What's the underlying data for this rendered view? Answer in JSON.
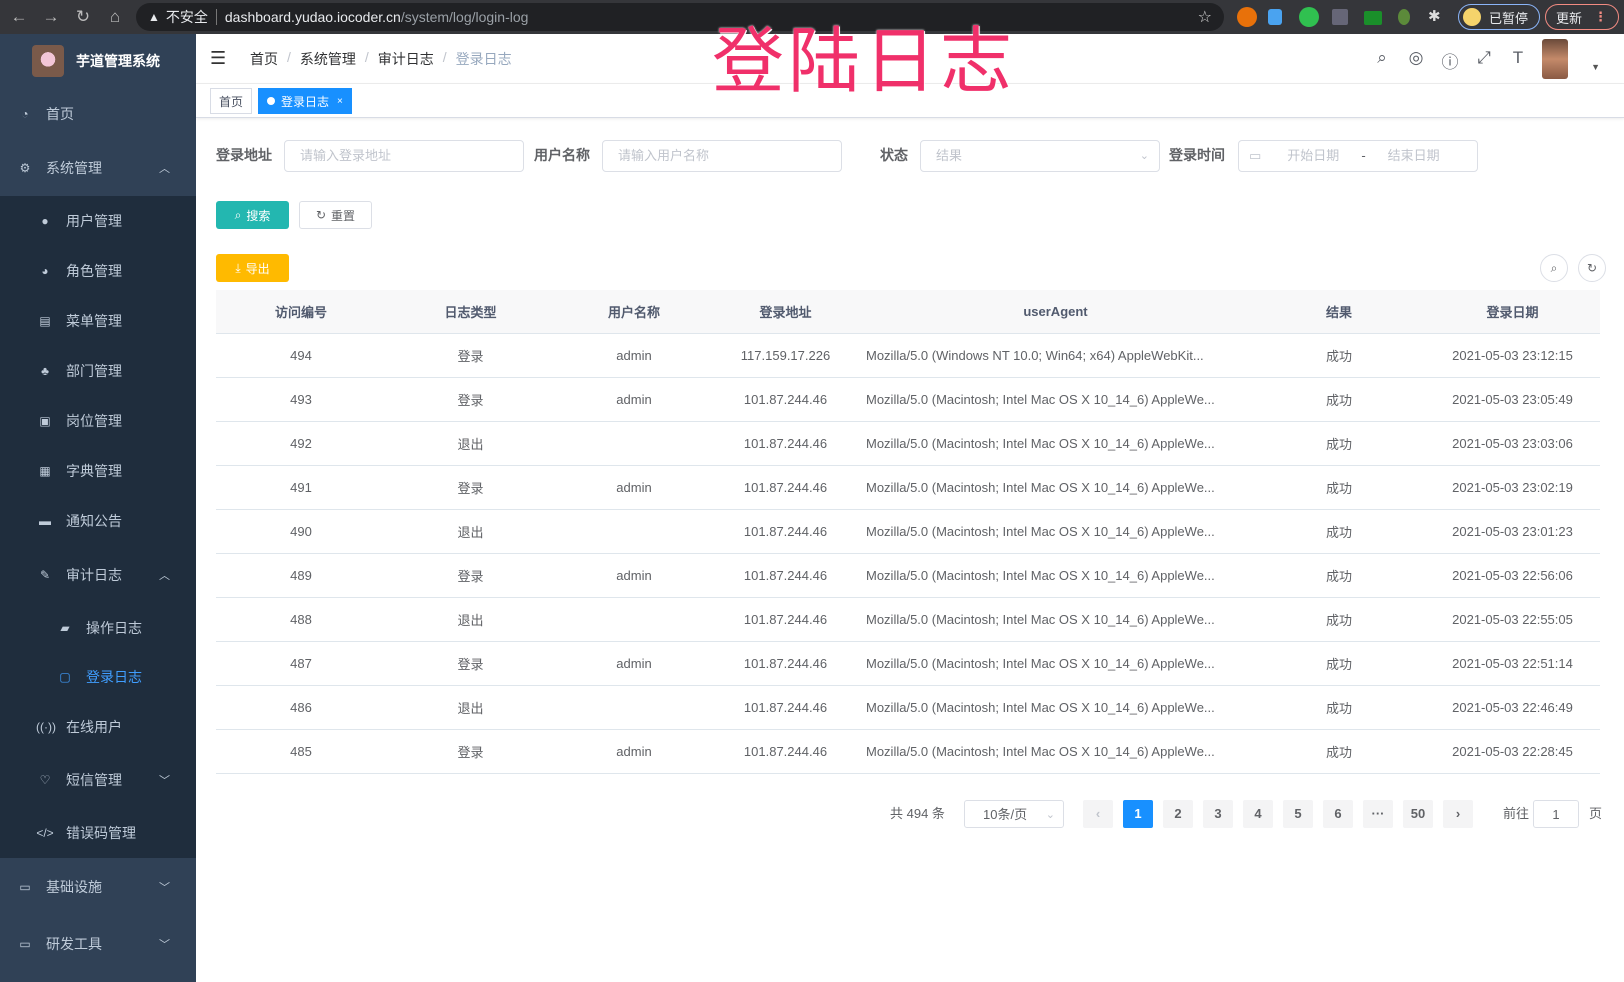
{
  "browser": {
    "security": "不安全",
    "host": "dashboard.yudao.iocoder.cn",
    "path": "/system/log/login-log",
    "profile": "已暂停",
    "update": "更新"
  },
  "overlay_title": "登陆日志",
  "sidebar": {
    "title": "芋道管理系统",
    "items": [
      {
        "label": "首页",
        "icon": "dashboard-icon"
      },
      {
        "label": "系统管理",
        "icon": "gear-icon",
        "expanded": true
      },
      {
        "label": "用户管理",
        "icon": "user-icon"
      },
      {
        "label": "角色管理",
        "icon": "peoples-icon"
      },
      {
        "label": "菜单管理",
        "icon": "tree-table-icon"
      },
      {
        "label": "部门管理",
        "icon": "tree-icon"
      },
      {
        "label": "岗位管理",
        "icon": "post-icon"
      },
      {
        "label": "字典管理",
        "icon": "dict-icon"
      },
      {
        "label": "通知公告",
        "icon": "message-icon"
      },
      {
        "label": "审计日志",
        "icon": "log-icon",
        "expanded": true
      },
      {
        "label": "操作日志",
        "icon": "form-icon"
      },
      {
        "label": "登录日志",
        "icon": "logininfor-icon",
        "active": true
      },
      {
        "label": "在线用户",
        "icon": "online-icon"
      },
      {
        "label": "短信管理",
        "icon": "validCode-icon",
        "expanded": false
      },
      {
        "label": "错误码管理",
        "icon": "code-icon"
      },
      {
        "label": "基础设施",
        "icon": "monitor-icon",
        "expanded": false
      },
      {
        "label": "研发工具",
        "icon": "tool-icon",
        "expanded": false
      }
    ]
  },
  "breadcrumb": [
    "首页",
    "系统管理",
    "审计日志",
    "登录日志"
  ],
  "tags": {
    "home": "首页",
    "current": "登录日志"
  },
  "filters": {
    "ip": {
      "label": "登录地址",
      "placeholder": "请输入登录地址"
    },
    "username": {
      "label": "用户名称",
      "placeholder": "请输入用户名称"
    },
    "status": {
      "label": "状态",
      "placeholder": "结果"
    },
    "time": {
      "label": "登录时间",
      "start": "开始日期",
      "sep": "-",
      "end": "结束日期"
    }
  },
  "buttons": {
    "search": "搜索",
    "reset": "重置",
    "export": "导出"
  },
  "colors": {
    "sidebar": "#304156",
    "primary": "#1890ff",
    "search": "#23b7b0",
    "export": "#ffba00",
    "overlay": "#f0306a"
  },
  "table": {
    "columns": [
      "访问编号",
      "日志类型",
      "用户名称",
      "登录地址",
      "userAgent",
      "结果",
      "登录日期"
    ],
    "rows": [
      [
        "494",
        "登录",
        "admin",
        "117.159.17.226",
        "Mozilla/5.0 (Windows NT 10.0; Win64; x64) AppleWebKit...",
        "成功",
        "2021-05-03 23:12:15"
      ],
      [
        "493",
        "登录",
        "admin",
        "101.87.244.46",
        "Mozilla/5.0 (Macintosh; Intel Mac OS X 10_14_6) AppleWe...",
        "成功",
        "2021-05-03 23:05:49"
      ],
      [
        "492",
        "退出",
        "",
        "101.87.244.46",
        "Mozilla/5.0 (Macintosh; Intel Mac OS X 10_14_6) AppleWe...",
        "成功",
        "2021-05-03 23:03:06"
      ],
      [
        "491",
        "登录",
        "admin",
        "101.87.244.46",
        "Mozilla/5.0 (Macintosh; Intel Mac OS X 10_14_6) AppleWe...",
        "成功",
        "2021-05-03 23:02:19"
      ],
      [
        "490",
        "退出",
        "",
        "101.87.244.46",
        "Mozilla/5.0 (Macintosh; Intel Mac OS X 10_14_6) AppleWe...",
        "成功",
        "2021-05-03 23:01:23"
      ],
      [
        "489",
        "登录",
        "admin",
        "101.87.244.46",
        "Mozilla/5.0 (Macintosh; Intel Mac OS X 10_14_6) AppleWe...",
        "成功",
        "2021-05-03 22:56:06"
      ],
      [
        "488",
        "退出",
        "",
        "101.87.244.46",
        "Mozilla/5.0 (Macintosh; Intel Mac OS X 10_14_6) AppleWe...",
        "成功",
        "2021-05-03 22:55:05"
      ],
      [
        "487",
        "登录",
        "admin",
        "101.87.244.46",
        "Mozilla/5.0 (Macintosh; Intel Mac OS X 10_14_6) AppleWe...",
        "成功",
        "2021-05-03 22:51:14"
      ],
      [
        "486",
        "退出",
        "",
        "101.87.244.46",
        "Mozilla/5.0 (Macintosh; Intel Mac OS X 10_14_6) AppleWe...",
        "成功",
        "2021-05-03 22:46:49"
      ],
      [
        "485",
        "登录",
        "admin",
        "101.87.244.46",
        "Mozilla/5.0 (Macintosh; Intel Mac OS X 10_14_6) AppleWe...",
        "成功",
        "2021-05-03 22:28:45"
      ]
    ]
  },
  "pagination": {
    "total": "共 494 条",
    "page_size": "10条/页",
    "pages": [
      "1",
      "2",
      "3",
      "4",
      "5",
      "6",
      "···",
      "50"
    ],
    "current": "1",
    "goto_label": "前往",
    "goto_value": "1",
    "goto_suffix": "页"
  }
}
